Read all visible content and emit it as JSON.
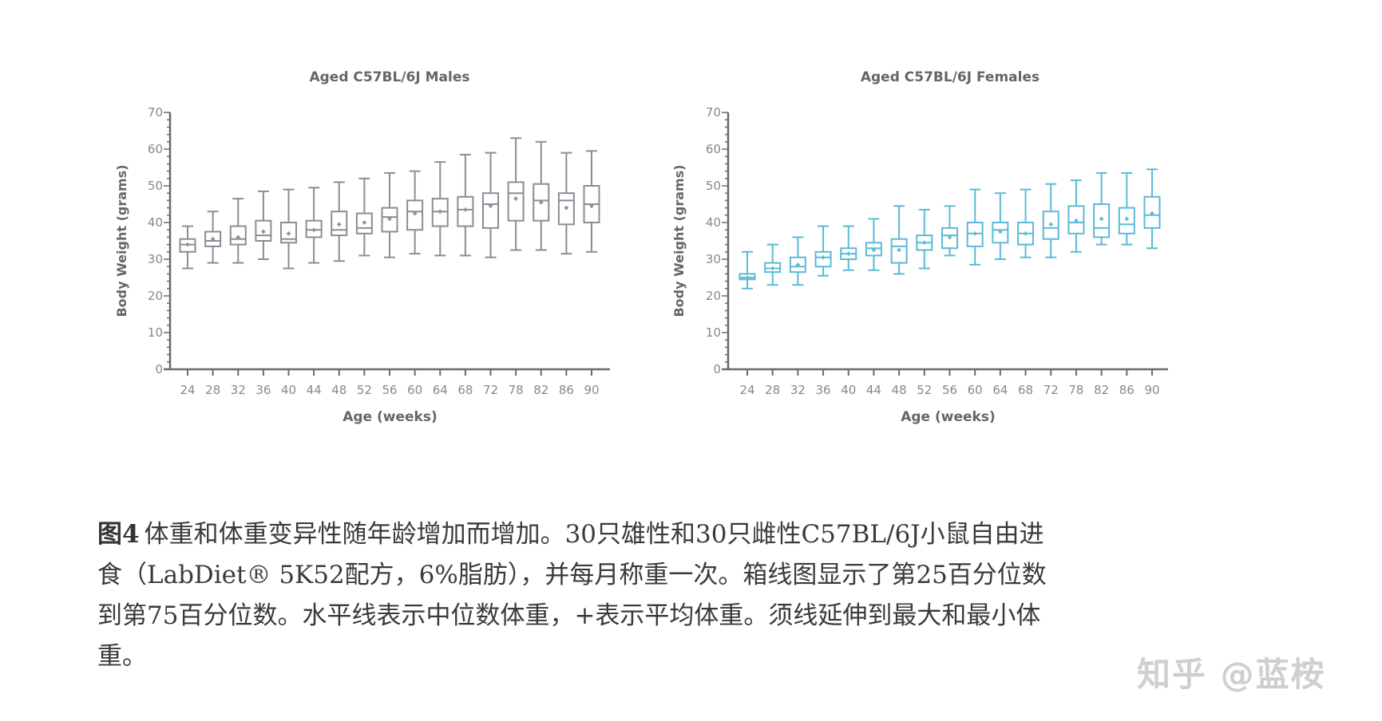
{
  "chart_data": [
    {
      "type": "boxplot",
      "title": "Aged C57BL/6J Males",
      "xlabel": "Age (weeks)",
      "ylabel": "Body Weight (grams)",
      "ylim": [
        0,
        70
      ],
      "yticks": [
        "0",
        "10",
        "20",
        "30",
        "40",
        "50",
        "60",
        "70"
      ],
      "categories": [
        "24",
        "28",
        "32",
        "36",
        "40",
        "44",
        "48",
        "52",
        "56",
        "60",
        "64",
        "68",
        "72",
        "78",
        "82",
        "86",
        "90"
      ],
      "color": "#8c8c96",
      "min": [
        27.5,
        29,
        29,
        30,
        27.5,
        29,
        29.5,
        31,
        30.5,
        31.5,
        31,
        31,
        30.5,
        32.5,
        32.5,
        31.5,
        32
      ],
      "q1": [
        32,
        33.5,
        34,
        35,
        34.5,
        36,
        36.5,
        37,
        37.5,
        38,
        39,
        39,
        38.5,
        40.5,
        40.5,
        39.5,
        40
      ],
      "median": [
        34,
        35,
        35.5,
        36.5,
        35.5,
        38,
        38,
        38.5,
        41.5,
        43,
        43,
        43.5,
        45,
        48,
        46,
        46,
        45
      ],
      "q3": [
        35.5,
        37.5,
        39,
        40.5,
        40,
        40.5,
        43,
        42.5,
        44,
        46,
        46.5,
        47,
        48,
        51,
        50.5,
        48,
        50
      ],
      "max": [
        39,
        43,
        46.5,
        48.5,
        49,
        49.5,
        51,
        52,
        53.5,
        54,
        56.5,
        58.5,
        59,
        63,
        62,
        59,
        59.5
      ],
      "mean": [
        34,
        35.5,
        36,
        37.5,
        37,
        38,
        39.5,
        40,
        41,
        42.5,
        43,
        43.5,
        44.5,
        46.5,
        45.5,
        44,
        44.5
      ]
    },
    {
      "type": "boxplot",
      "title": "Aged C57BL/6J Females",
      "xlabel": "Age (weeks)",
      "ylabel": "Body Weight (grams)",
      "ylim": [
        0,
        70
      ],
      "yticks": [
        "0",
        "10",
        "20",
        "30",
        "40",
        "50",
        "60",
        "70"
      ],
      "categories": [
        "24",
        "28",
        "32",
        "36",
        "40",
        "44",
        "48",
        "52",
        "56",
        "60",
        "64",
        "68",
        "72",
        "78",
        "82",
        "86",
        "90"
      ],
      "color": "#5bbad6",
      "min": [
        22,
        23,
        23,
        25.5,
        27,
        27,
        26,
        27.5,
        31,
        28.5,
        30,
        30.5,
        30.5,
        32,
        34,
        34,
        33
      ],
      "q1": [
        24.5,
        26.5,
        26.5,
        28,
        30,
        31,
        29,
        32.5,
        33,
        33.5,
        34.5,
        34,
        35.5,
        37,
        36,
        37,
        38.5
      ],
      "median": [
        25,
        27.5,
        28,
        30.5,
        31.5,
        33,
        33.5,
        34.5,
        36.5,
        37,
        38,
        37,
        38.5,
        40,
        38.5,
        39.5,
        42
      ],
      "q3": [
        26,
        29,
        30.5,
        32,
        33,
        34.5,
        35.5,
        36.5,
        38.5,
        40,
        40,
        40,
        43,
        44.5,
        45,
        44,
        47
      ],
      "max": [
        32,
        34,
        36,
        39,
        39,
        41,
        44.5,
        43.5,
        44.5,
        49,
        48,
        49,
        50.5,
        51.5,
        53.5,
        53.5,
        54.5
      ],
      "mean": [
        25,
        27.5,
        28.5,
        30.5,
        31.5,
        32.5,
        32.5,
        34.5,
        36,
        37,
        37.5,
        37,
        39.5,
        40.5,
        41,
        41,
        42.5
      ]
    }
  ],
  "caption": {
    "label": "图4",
    "lines": [
      "体重和体重变异性随年龄增加而增加。30只雄性和30只雌性C57BL/6J小鼠自由进",
      "食（LabDiet® 5K52配方，6%脂肪），并每月称重一次。箱线图显示了第25百分位数",
      "到第75百分位数。水平线表示中位数体重，+表示平均体重。须线延伸到最大和最小体",
      "重。"
    ]
  },
  "watermark": "知乎 @蓝桉"
}
